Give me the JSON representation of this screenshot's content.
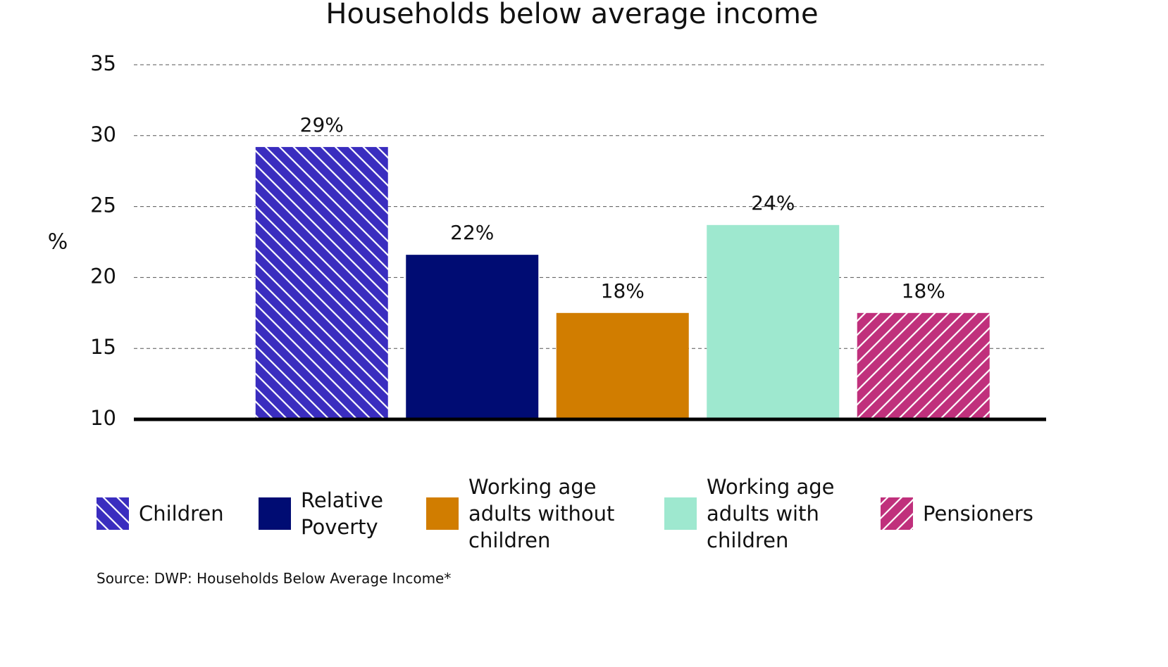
{
  "chart_data": {
    "type": "bar",
    "title": "Households below average income",
    "y_label": "%",
    "source": "Source: DWP: Households Below Average Income*",
    "ylim": [
      10,
      35
    ],
    "yticks": [
      10,
      15,
      20,
      25,
      30,
      35
    ],
    "grid": true,
    "series": [
      {
        "name": "Children",
        "color": "#3a2dbf",
        "hatch": "backslash",
        "values": [
          29.2
        ],
        "value_labels": [
          "29%"
        ]
      },
      {
        "name": "Relative Poverty",
        "color": "#000c73",
        "values": [
          21.6
        ],
        "value_labels": [
          "22%"
        ]
      },
      {
        "name": "Working age adults without children",
        "color": "#d17d00",
        "values": [
          17.5
        ],
        "value_labels": [
          "18%"
        ]
      },
      {
        "name": "Working age adults with children",
        "color": "#9ee8cf",
        "values": [
          23.7
        ],
        "value_labels": [
          "24%"
        ]
      },
      {
        "name": "Pensioners",
        "color": "#c0307c",
        "hatch": "slash",
        "values": [
          17.5
        ],
        "value_labels": [
          "18%"
        ]
      }
    ]
  }
}
